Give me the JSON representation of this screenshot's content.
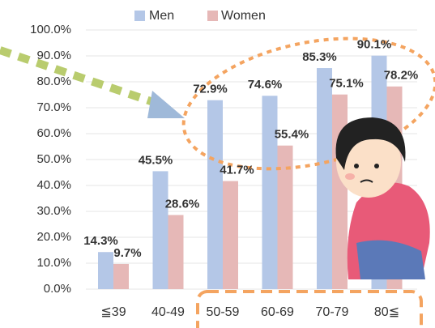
{
  "chart_data": {
    "type": "bar",
    "categories": [
      "≦39",
      "40-49",
      "50-59",
      "60-69",
      "70-79",
      "80≦"
    ],
    "series": [
      {
        "name": "Men",
        "color": "#b4c7e7",
        "values": [
          14.3,
          45.5,
          72.9,
          74.6,
          85.3,
          90.1
        ],
        "value_labels": [
          "14.3%",
          "45.5%",
          "72.9%",
          "74.6%",
          "85.3%",
          "90.1%"
        ]
      },
      {
        "name": "Women",
        "color": "#e6b8b7",
        "values": [
          9.7,
          28.6,
          41.7,
          55.4,
          75.1,
          78.2
        ],
        "value_labels": [
          "9.7%",
          "28.6%",
          "41.7%",
          "55.4%",
          "75.1%",
          "78.2%"
        ]
      }
    ],
    "ylim": [
      0,
      100
    ],
    "yticks": [
      {
        "value": 0,
        "label": "0.0%"
      },
      {
        "value": 10,
        "label": "10.0%"
      },
      {
        "value": 20,
        "label": "20.0%"
      },
      {
        "value": 30,
        "label": "30.0%"
      },
      {
        "value": 40,
        "label": "40.0%"
      },
      {
        "value": 50,
        "label": "50.0%"
      },
      {
        "value": 60,
        "label": "60.0%"
      },
      {
        "value": 70,
        "label": "70.0%"
      },
      {
        "value": 80,
        "label": "80.0%"
      },
      {
        "value": 90,
        "label": "90.0%"
      },
      {
        "value": 100,
        "label": "100.0%"
      }
    ],
    "grid": true,
    "legend": "top"
  }
}
